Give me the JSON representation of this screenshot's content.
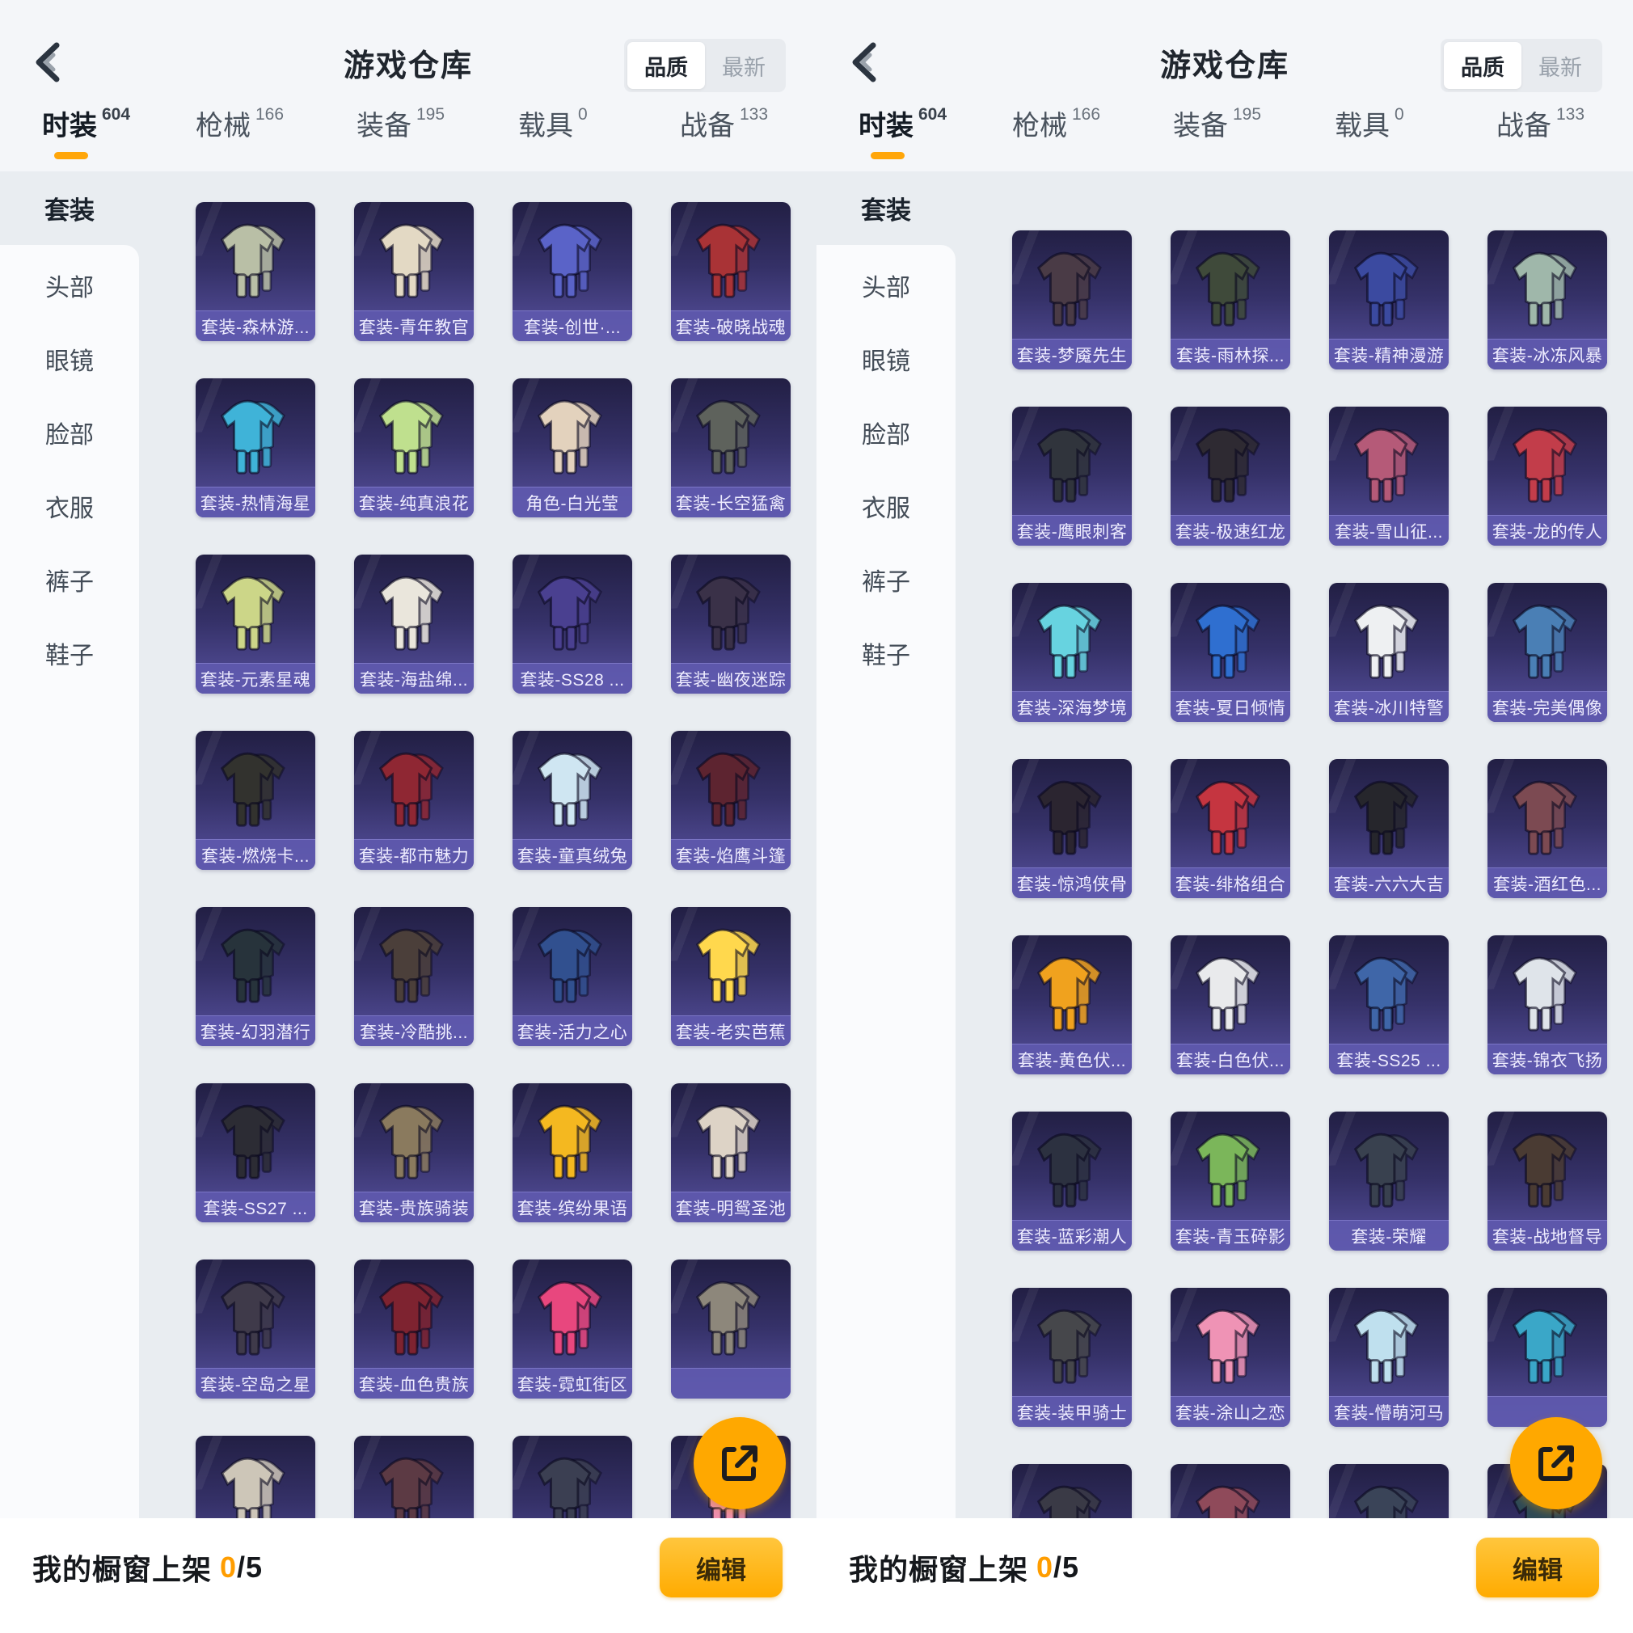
{
  "header": {
    "title": "游戏仓库",
    "sort_options": [
      {
        "label": "品质",
        "selected": true
      },
      {
        "label": "最新",
        "selected": false
      }
    ]
  },
  "tabs": [
    {
      "label": "时装",
      "count": "604",
      "active": true
    },
    {
      "label": "枪械",
      "count": "166",
      "active": false
    },
    {
      "label": "装备",
      "count": "195",
      "active": false
    },
    {
      "label": "载具",
      "count": "0",
      "active": false
    },
    {
      "label": "战备",
      "count": "133",
      "active": false
    }
  ],
  "sidebar": [
    {
      "label": "套装",
      "active": true
    },
    {
      "label": "头部",
      "active": false
    },
    {
      "label": "眼镜",
      "active": false
    },
    {
      "label": "脸部",
      "active": false
    },
    {
      "label": "衣服",
      "active": false
    },
    {
      "label": "裤子",
      "active": false
    },
    {
      "label": "鞋子",
      "active": false
    }
  ],
  "bottom_bar": {
    "label": "我的橱窗上架",
    "count_current": "0",
    "count_total": "/5",
    "edit_button": "编辑"
  },
  "share_icon": "share-export-icon",
  "colors": {
    "accent_orange": "#ffa60a",
    "card_gradient_top": "#221f44",
    "card_gradient_bottom": "#57519f",
    "card_label_band": "#605aaf",
    "grid_background": "#e9edf1",
    "page_background": "#f4f6f9"
  },
  "panels": [
    {
      "name": "left",
      "rows": [
        [
          {
            "label": "套装-森林游...",
            "color": "#b9bfa6"
          },
          {
            "label": "套装-青年教官",
            "color": "#e3d9c4"
          },
          {
            "label": "套装-创世·...",
            "color": "#5a63c8"
          },
          {
            "label": "套装-破晓战魂",
            "color": "#a93336"
          }
        ],
        [
          {
            "label": "套装-热情海星",
            "color": "#3fb3d8"
          },
          {
            "label": "套装-纯真浪花",
            "color": "#bfe08e"
          },
          {
            "label": "角色-白光莹",
            "color": "#e3d2bd"
          },
          {
            "label": "套装-长空猛禽",
            "color": "#5e625c"
          }
        ],
        [
          {
            "label": "套装-元素星魂",
            "color": "#ccd688"
          },
          {
            "label": "套装-海盐绵...",
            "color": "#eae6dc"
          },
          {
            "label": "套装-SS28 ...",
            "color": "#4a4090"
          },
          {
            "label": "套装-幽夜迷踪",
            "color": "#3a3148"
          }
        ],
        [
          {
            "label": "套装-燃烧卡...",
            "color": "#32322e"
          },
          {
            "label": "套装-都市魅力",
            "color": "#8f2733"
          },
          {
            "label": "套装-童真绒兔",
            "color": "#cfe6f2"
          },
          {
            "label": "套装-焰鹰斗篷",
            "color": "#5d2430"
          }
        ],
        [
          {
            "label": "套装-幻羽潜行",
            "color": "#27333b"
          },
          {
            "label": "套装-冷酷挑...",
            "color": "#4b3f3a"
          },
          {
            "label": "套装-活力之心",
            "color": "#31508f"
          },
          {
            "label": "套装-老实芭蕉",
            "color": "#ffd84d"
          }
        ],
        [
          {
            "label": "套装-SS27 ...",
            "color": "#2c2c34"
          },
          {
            "label": "套装-贵族骑装",
            "color": "#8a7a5e"
          },
          {
            "label": "套装-缤纷果语",
            "color": "#f4b820"
          },
          {
            "label": "套装-明鸳圣池",
            "color": "#ddd3c6"
          }
        ],
        [
          {
            "label": "套装-空岛之星",
            "color": "#3f3a4a"
          },
          {
            "label": "套装-血色贵族",
            "color": "#7e2330"
          },
          {
            "label": "套装-霓虹街区",
            "color": "#e8477e"
          },
          {
            "label": "",
            "color": "#8d877b"
          }
        ],
        [
          {
            "label": "",
            "color": "#cdc6b8"
          },
          {
            "label": "",
            "color": "#5c3a44"
          },
          {
            "label": "",
            "color": "#3b3f52"
          },
          {
            "label": "",
            "color": "#ef8fae"
          }
        ]
      ]
    },
    {
      "name": "right",
      "rows": [
        [
          {
            "label": "套装-梦魇先生",
            "color": "#4a3b46"
          },
          {
            "label": "套装-雨林探...",
            "color": "#3f4a3a"
          },
          {
            "label": "套装-精神漫游",
            "color": "#3b4aa0"
          },
          {
            "label": "套装-冰冻风暴",
            "color": "#9fb7aa"
          }
        ],
        [
          {
            "label": "套装-鹰眼刺客",
            "color": "#30343c"
          },
          {
            "label": "套装-极速红龙",
            "color": "#2e2a32"
          },
          {
            "label": "套装-雪山征...",
            "color": "#b55a78"
          },
          {
            "label": "套装-龙的传人",
            "color": "#c23d4a"
          }
        ],
        [
          {
            "label": "套装-深海梦境",
            "color": "#67d3e0"
          },
          {
            "label": "套装-夏日倾情",
            "color": "#2f6fd0"
          },
          {
            "label": "套装-冰川特警",
            "color": "#eef0f2"
          },
          {
            "label": "套装-完美偶像",
            "color": "#4a7fb5"
          }
        ],
        [
          {
            "label": "套装-惊鸿侠骨",
            "color": "#2b2530"
          },
          {
            "label": "套装-绯格组合",
            "color": "#c53540"
          },
          {
            "label": "套装-六六大吉",
            "color": "#26262c"
          },
          {
            "label": "套装-酒红色...",
            "color": "#7c4a52"
          }
        ],
        [
          {
            "label": "套装-黄色伏...",
            "color": "#f0a21e"
          },
          {
            "label": "套装-白色伏...",
            "color": "#e9eaec"
          },
          {
            "label": "套装-SS25 ...",
            "color": "#3f66a8"
          },
          {
            "label": "套装-锦衣飞扬",
            "color": "#dfe4ea"
          }
        ],
        [
          {
            "label": "套装-蓝彩潮人",
            "color": "#2c3140"
          },
          {
            "label": "套装-青玉碎影",
            "color": "#7bb65a"
          },
          {
            "label": "套装-荣耀",
            "color": "#39414f"
          },
          {
            "label": "套装-战地督导",
            "color": "#4a3b33"
          }
        ],
        [
          {
            "label": "套装-装甲骑士",
            "color": "#46474b"
          },
          {
            "label": "套装-涂山之恋",
            "color": "#ef93b5"
          },
          {
            "label": "套装-懵萌河马",
            "color": "#bfe0ee"
          },
          {
            "label": "",
            "color": "#3aa7c8"
          }
        ],
        [
          {
            "label": "",
            "color": "#3a3a46"
          },
          {
            "label": "",
            "color": "#8f4a5a"
          },
          {
            "label": "",
            "color": "#3a4458"
          },
          {
            "label": "",
            "color": "#2e4a56"
          }
        ]
      ]
    }
  ]
}
